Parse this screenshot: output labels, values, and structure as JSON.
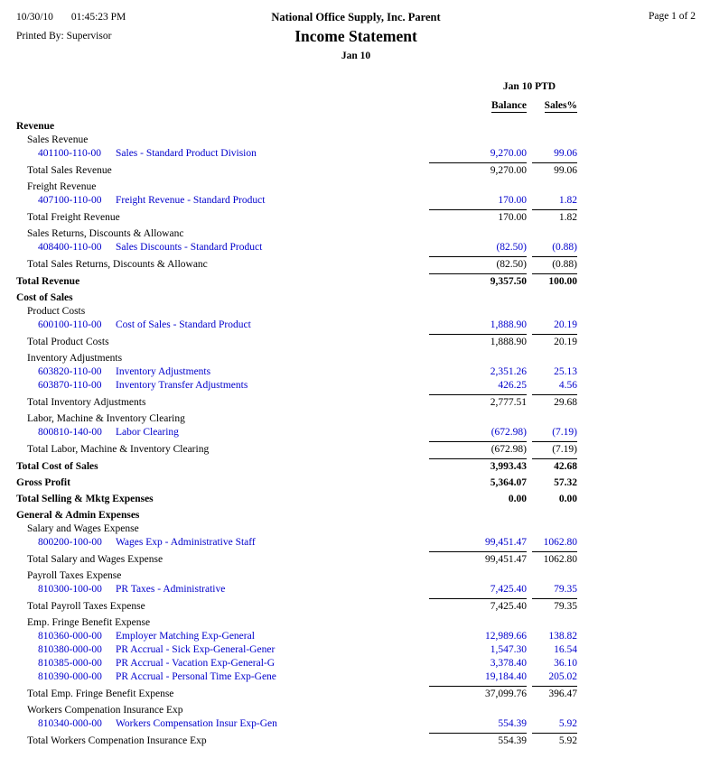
{
  "page": {
    "date": "10/30/10",
    "time": "01:45:23 PM",
    "printed_by": "Printed By: Supervisor",
    "company": "National Office Supply, Inc. Parent",
    "report_title": "Income Statement",
    "period": "Jan 10",
    "page_label": "Page 1 of 2"
  },
  "columns": {
    "period_header": "Jan 10 PTD",
    "balance": "Balance",
    "sales_pct": "Sales%"
  },
  "colors": {
    "link_blue": "#0000CC",
    "text": "#000000"
  },
  "rows": [
    {
      "type": "section",
      "label": "Revenue"
    },
    {
      "type": "group",
      "label": "Sales Revenue"
    },
    {
      "type": "detail",
      "account": "401100-110-00",
      "label": "Sales - Standard Product Division",
      "balance": "9,270.00",
      "sales": "99.06"
    },
    {
      "type": "total",
      "label": "Total Sales Revenue",
      "balance": "9,270.00",
      "sales": "99.06",
      "line": true
    },
    {
      "type": "group",
      "label": "Freight Revenue"
    },
    {
      "type": "detail",
      "account": "407100-110-00",
      "label": "Freight Revenue - Standard Product",
      "balance": "170.00",
      "sales": "1.82"
    },
    {
      "type": "total",
      "label": "Total Freight Revenue",
      "balance": "170.00",
      "sales": "1.82",
      "line": true
    },
    {
      "type": "group",
      "label": "Sales Returns, Discounts & Allowanc"
    },
    {
      "type": "detail",
      "account": "408400-110-00",
      "label": "Sales Discounts - Standard Product",
      "balance": "(82.50)",
      "sales": "(0.88)"
    },
    {
      "type": "total",
      "label": "Total Sales Returns, Discounts & Allowanc",
      "balance": "(82.50)",
      "sales": "(0.88)",
      "line": true
    },
    {
      "type": "grand",
      "label": "Total Revenue",
      "balance": "9,357.50",
      "sales": "100.00",
      "line": true
    },
    {
      "type": "section",
      "label": "Cost of Sales"
    },
    {
      "type": "group",
      "label": "Product Costs"
    },
    {
      "type": "detail",
      "account": "600100-110-00",
      "label": "Cost of Sales - Standard Product",
      "balance": "1,888.90",
      "sales": "20.19"
    },
    {
      "type": "total",
      "label": "Total Product Costs",
      "balance": "1,888.90",
      "sales": "20.19",
      "line": true
    },
    {
      "type": "group",
      "label": "Inventory Adjustments"
    },
    {
      "type": "detail",
      "account": "603820-110-00",
      "label": "Inventory Adjustments",
      "balance": "2,351.26",
      "sales": "25.13"
    },
    {
      "type": "detail",
      "account": "603870-110-00",
      "label": "Inventory Transfer Adjustments",
      "balance": "426.25",
      "sales": "4.56"
    },
    {
      "type": "total",
      "label": "Total Inventory Adjustments",
      "balance": "2,777.51",
      "sales": "29.68",
      "line": true
    },
    {
      "type": "group",
      "label": "Labor, Machine & Inventory Clearing"
    },
    {
      "type": "detail",
      "account": "800810-140-00",
      "label": "Labor Clearing",
      "balance": "(672.98)",
      "sales": "(7.19)"
    },
    {
      "type": "total",
      "label": "Total Labor, Machine & Inventory Clearing",
      "balance": "(672.98)",
      "sales": "(7.19)",
      "line": true
    },
    {
      "type": "grand",
      "label": "Total Cost of Sales",
      "balance": "3,993.43",
      "sales": "42.68",
      "line": true
    },
    {
      "type": "grand",
      "label": "Gross Profit",
      "balance": "5,364.07",
      "sales": "57.32"
    },
    {
      "type": "grand",
      "label": "Total Selling & Mktg Expenses",
      "balance": "0.00",
      "sales": "0.00"
    },
    {
      "type": "section",
      "label": "General & Admin Expenses"
    },
    {
      "type": "group",
      "label": "Salary and Wages Expense"
    },
    {
      "type": "detail",
      "account": "800200-100-00",
      "label": "Wages Exp - Administrative Staff",
      "balance": "99,451.47",
      "sales": "1062.80"
    },
    {
      "type": "total",
      "label": "Total Salary and Wages Expense",
      "balance": "99,451.47",
      "sales": "1062.80",
      "line": true
    },
    {
      "type": "group",
      "label": "Payroll Taxes Expense"
    },
    {
      "type": "detail",
      "account": "810300-100-00",
      "label": "PR Taxes - Administrative",
      "balance": "7,425.40",
      "sales": "79.35"
    },
    {
      "type": "total",
      "label": "Total Payroll Taxes Expense",
      "balance": "7,425.40",
      "sales": "79.35",
      "line": true
    },
    {
      "type": "group",
      "label": "Emp. Fringe Benefit Expense"
    },
    {
      "type": "detail",
      "account": "810360-000-00",
      "label": "Employer Matching Exp-General",
      "balance": "12,989.66",
      "sales": "138.82"
    },
    {
      "type": "detail",
      "account": "810380-000-00",
      "label": "PR Accrual - Sick Exp-General-Gener",
      "balance": "1,547.30",
      "sales": "16.54"
    },
    {
      "type": "detail",
      "account": "810385-000-00",
      "label": "PR Accrual - Vacation Exp-General-G",
      "balance": "3,378.40",
      "sales": "36.10"
    },
    {
      "type": "detail",
      "account": "810390-000-00",
      "label": "PR Accrual - Personal Time Exp-Gene",
      "balance": "19,184.40",
      "sales": "205.02"
    },
    {
      "type": "total",
      "label": "Total Emp. Fringe Benefit Expense",
      "balance": "37,099.76",
      "sales": "396.47",
      "line": true
    },
    {
      "type": "group",
      "label": "Workers Compenation Insurance Exp"
    },
    {
      "type": "detail",
      "account": "810340-000-00",
      "label": "Workers Compensation Insur Exp-Gen",
      "balance": "554.39",
      "sales": "5.92"
    },
    {
      "type": "total",
      "label": "Total Workers Compenation Insurance Exp",
      "balance": "554.39",
      "sales": "5.92",
      "line": true
    }
  ]
}
